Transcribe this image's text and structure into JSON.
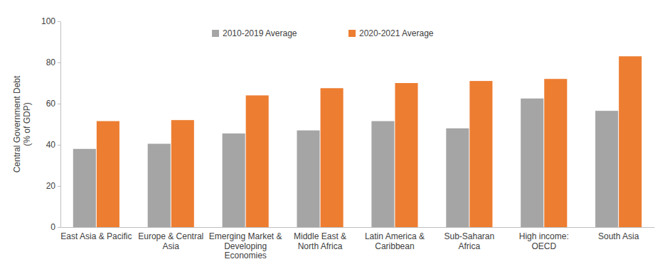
{
  "chart_data": {
    "type": "bar",
    "categories": [
      "East Asia & Pacific",
      "Europe & Central Asia",
      "Emerging Market & Developing Economies",
      "Middle East & North Africa",
      "Latin America & Caribbean",
      "Sub-Saharan Africa",
      "High income: OECD",
      "South Asia"
    ],
    "series": [
      {
        "name": "2010-2019 Average",
        "color": "#a5a5a5",
        "values": [
          38,
          40.5,
          45.5,
          47,
          51.5,
          48,
          62.5,
          56.5
        ]
      },
      {
        "name": "2020-2021 Average",
        "color": "#ed7d31",
        "values": [
          51.5,
          52,
          64,
          67.5,
          70,
          71,
          72,
          83
        ]
      }
    ],
    "y_label": "Central Government Debt (% of GDP)",
    "ylim": [
      0,
      100
    ],
    "yticks": [
      0,
      20,
      40,
      60,
      80,
      100
    ],
    "grid": false,
    "legend": "top"
  }
}
